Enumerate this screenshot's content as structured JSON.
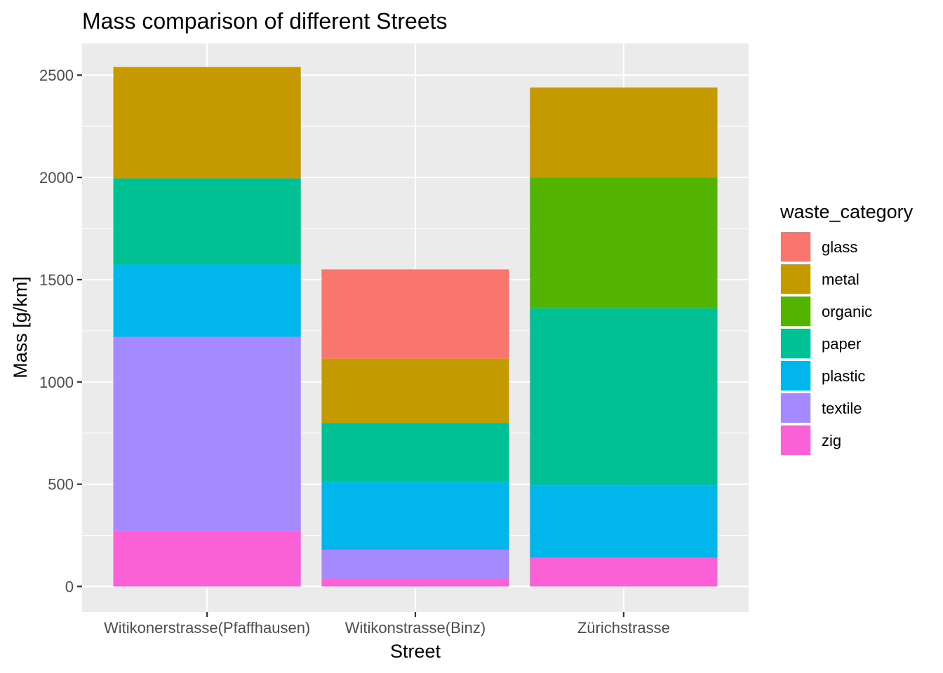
{
  "chart_data": {
    "type": "bar",
    "stacked": true,
    "title": "Mass comparison of different Streets",
    "xlabel": "Street",
    "ylabel": "Mass [g/km]",
    "ylim": [
      -125,
      2655
    ],
    "yticks": [
      0,
      500,
      1000,
      1500,
      2000,
      2500
    ],
    "grid": true,
    "legend_position": "right",
    "legend_title": "waste_category",
    "categories": [
      "Witikonerstrasse(Pfaffhausen)",
      "Witikonstrasse(Binz)",
      "Zürichstrasse"
    ],
    "series": [
      {
        "name": "zig",
        "color": "#FB61D7",
        "values": [
          270,
          40,
          140
        ]
      },
      {
        "name": "textile",
        "color": "#A58AFF",
        "values": [
          950,
          140,
          0
        ]
      },
      {
        "name": "plastic",
        "color": "#00B6EB",
        "values": [
          355,
          330,
          355
        ]
      },
      {
        "name": "paper",
        "color": "#00C094",
        "values": [
          420,
          290,
          865
        ]
      },
      {
        "name": "organic",
        "color": "#53B400",
        "values": [
          0,
          0,
          640
        ]
      },
      {
        "name": "metal",
        "color": "#C49A00",
        "values": [
          545,
          315,
          440
        ]
      },
      {
        "name": "glass",
        "color": "#F8766D",
        "values": [
          0,
          435,
          0
        ]
      }
    ],
    "legend_order": [
      "glass",
      "metal",
      "organic",
      "paper",
      "plastic",
      "textile",
      "zig"
    ]
  }
}
